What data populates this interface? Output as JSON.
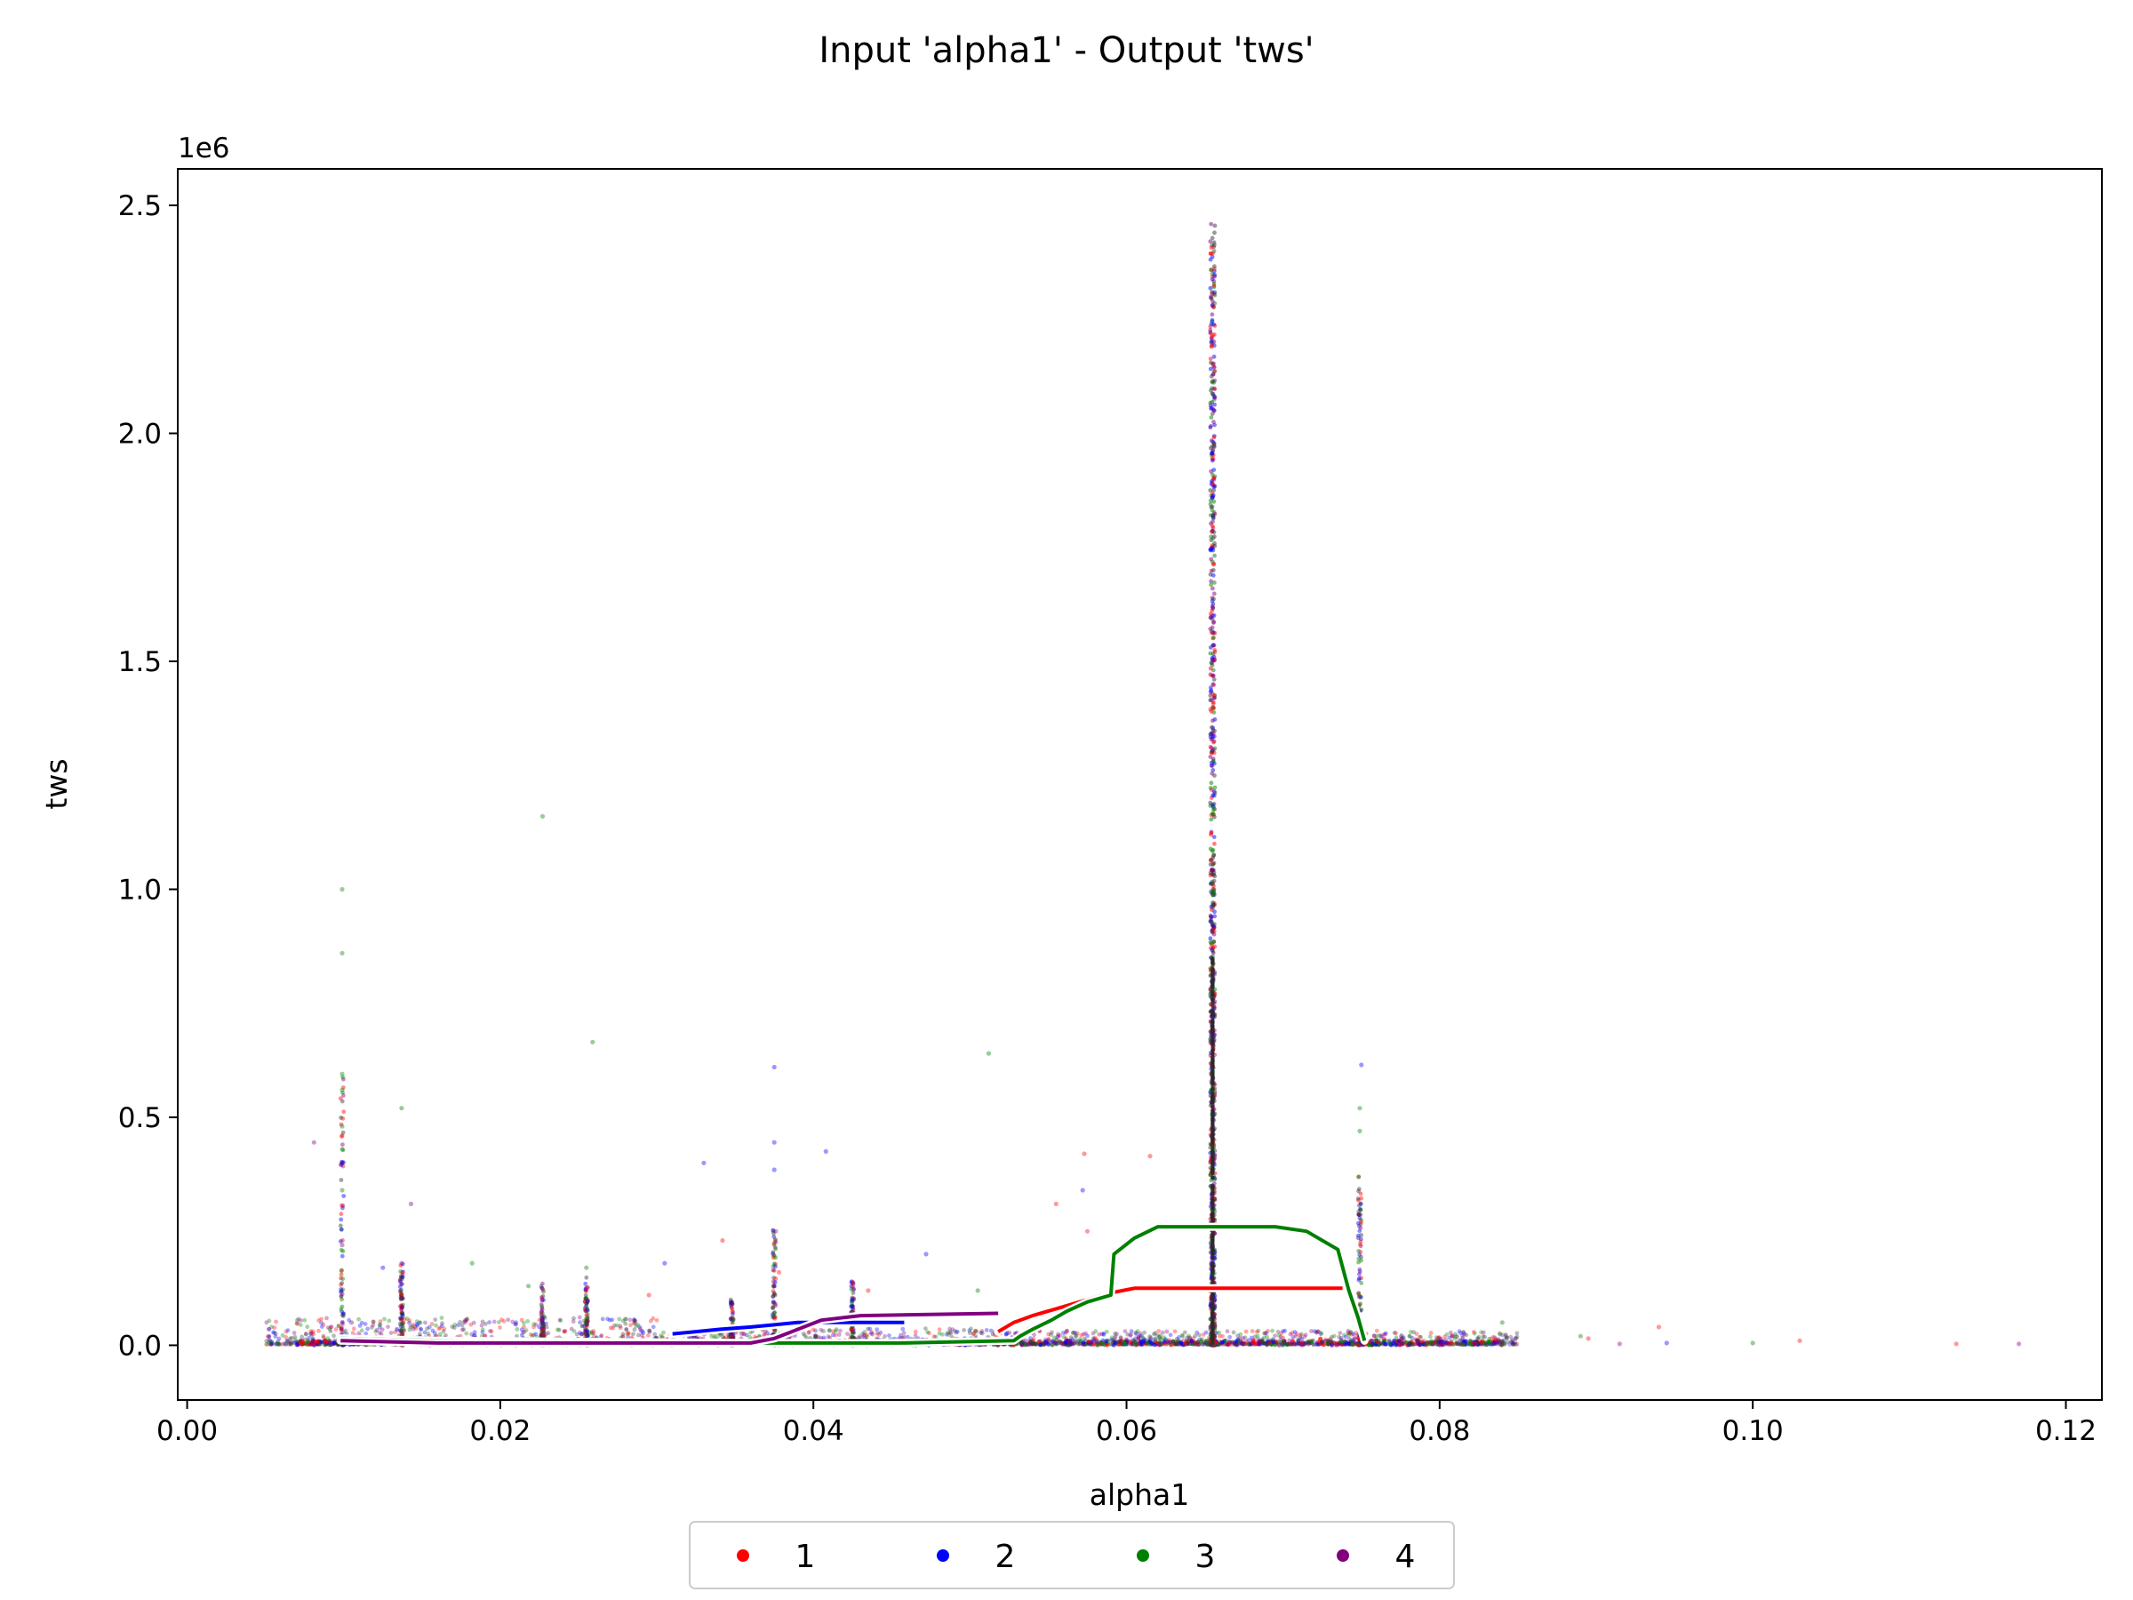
{
  "chart_data": {
    "type": "scatter",
    "title": "Input 'alpha1' - Output 'tws'",
    "xlabel": "alpha1",
    "ylabel": "tws",
    "y_multiplier_label": "1e6",
    "xlim": [
      -0.0006,
      0.1223
    ],
    "ylim": [
      -0.12,
      2.58
    ],
    "x_ticks": [
      0.0,
      0.02,
      0.04,
      0.06,
      0.08,
      0.1,
      0.12
    ],
    "x_tick_labels": [
      "0.00",
      "0.02",
      "0.04",
      "0.06",
      "0.08",
      "0.10",
      "0.12"
    ],
    "y_ticks": [
      0.0,
      0.5,
      1.0,
      1.5,
      2.0,
      2.5
    ],
    "y_tick_labels": [
      "0.0",
      "0.5",
      "1.0",
      "1.5",
      "2.0",
      "2.5"
    ],
    "grid": false,
    "legend_position": "bottom-center",
    "series": [
      {
        "name": "1",
        "color": "#ff0000",
        "line": [
          [
            0.0518,
            0.03
          ],
          [
            0.0528,
            0.05
          ],
          [
            0.054,
            0.065
          ],
          [
            0.0555,
            0.08
          ],
          [
            0.0575,
            0.1
          ],
          [
            0.059,
            0.115
          ],
          [
            0.0605,
            0.125
          ],
          [
            0.0738,
            0.125
          ]
        ],
        "outliers": [
          [
            0.0573,
            0.42
          ],
          [
            0.0615,
            0.415
          ],
          [
            0.0555,
            0.31
          ],
          [
            0.0575,
            0.25
          ],
          [
            0.0342,
            0.23
          ],
          [
            0.0378,
            0.16
          ],
          [
            0.0435,
            0.12
          ],
          [
            0.0895,
            0.015
          ],
          [
            0.094,
            0.04
          ],
          [
            0.103,
            0.01
          ],
          [
            0.113,
            0.003
          ],
          [
            0.0295,
            0.11
          ]
        ]
      },
      {
        "name": "2",
        "color": "#0000ff",
        "line": [
          [
            0.031,
            0.025
          ],
          [
            0.0325,
            0.03
          ],
          [
            0.034,
            0.035
          ],
          [
            0.036,
            0.04
          ],
          [
            0.0375,
            0.045
          ],
          [
            0.039,
            0.05
          ],
          [
            0.0458,
            0.05
          ]
        ],
        "outliers": [
          [
            0.0375,
            0.61
          ],
          [
            0.0375,
            0.445
          ],
          [
            0.0375,
            0.385
          ],
          [
            0.0408,
            0.425
          ],
          [
            0.033,
            0.4
          ],
          [
            0.0572,
            0.34
          ],
          [
            0.0305,
            0.18
          ],
          [
            0.0125,
            0.17
          ],
          [
            0.0472,
            0.2
          ],
          [
            0.0945,
            0.005
          ],
          [
            0.075,
            0.615
          ]
        ]
      },
      {
        "name": "3",
        "color": "#008000",
        "line": [
          [
            0.0098,
            0.015
          ],
          [
            0.016,
            0.01
          ],
          [
            0.036,
            0.005
          ],
          [
            0.0455,
            0.005
          ],
          [
            0.0528,
            0.01
          ],
          [
            0.0532,
            0.02
          ],
          [
            0.054,
            0.035
          ],
          [
            0.0552,
            0.055
          ],
          [
            0.0562,
            0.075
          ],
          [
            0.0575,
            0.095
          ],
          [
            0.059,
            0.11
          ],
          [
            0.0592,
            0.2
          ],
          [
            0.0605,
            0.235
          ],
          [
            0.062,
            0.26
          ],
          [
            0.0695,
            0.26
          ],
          [
            0.0715,
            0.25
          ],
          [
            0.0735,
            0.21
          ],
          [
            0.0742,
            0.12
          ],
          [
            0.0748,
            0.06
          ],
          [
            0.0752,
            0.01
          ]
        ],
        "outliers": [
          [
            0.0227,
            1.16
          ],
          [
            0.0099,
            1.0
          ],
          [
            0.0099,
            0.86
          ],
          [
            0.0099,
            0.595
          ],
          [
            0.0099,
            0.56
          ],
          [
            0.0099,
            0.48
          ],
          [
            0.0099,
            0.43
          ],
          [
            0.0099,
            0.34
          ],
          [
            0.0259,
            0.665
          ],
          [
            0.0512,
            0.64
          ],
          [
            0.0137,
            0.52
          ],
          [
            0.0749,
            0.52
          ],
          [
            0.0749,
            0.47
          ],
          [
            0.0182,
            0.18
          ],
          [
            0.0255,
            0.17
          ],
          [
            0.0218,
            0.13
          ],
          [
            0.0102,
            0.005
          ],
          [
            0.1,
            0.005
          ],
          [
            0.084,
            0.05
          ],
          [
            0.089,
            0.02
          ],
          [
            0.0505,
            0.12
          ]
        ]
      },
      {
        "name": "4",
        "color": "#800080",
        "line": [
          [
            0.0098,
            0.01
          ],
          [
            0.016,
            0.005
          ],
          [
            0.036,
            0.005
          ],
          [
            0.0375,
            0.015
          ],
          [
            0.039,
            0.035
          ],
          [
            0.0405,
            0.055
          ],
          [
            0.043,
            0.065
          ],
          [
            0.0518,
            0.07
          ]
        ],
        "outliers": [
          [
            0.0081,
            0.445
          ],
          [
            0.0143,
            0.31
          ],
          [
            0.0376,
            0.25
          ],
          [
            0.0099,
            0.22
          ],
          [
            0.0137,
            0.18
          ],
          [
            0.0105,
            0.05
          ],
          [
            0.117,
            0.003
          ],
          [
            0.0915,
            0.003
          ],
          [
            0.0838,
            0.01
          ]
        ]
      }
    ]
  }
}
